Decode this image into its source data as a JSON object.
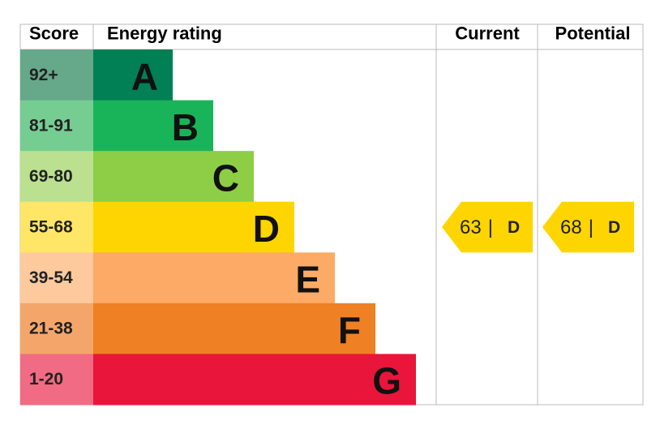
{
  "header": {
    "score": "Score",
    "rating": "Energy rating",
    "current": "Current",
    "potential": "Potential"
  },
  "bands": [
    {
      "score": "92+",
      "letter": "A",
      "color": "#008054",
      "score_color": "#66a88a"
    },
    {
      "score": "81-91",
      "letter": "B",
      "color": "#19b459",
      "score_color": "#75cd92"
    },
    {
      "score": "69-80",
      "letter": "C",
      "color": "#8dce46",
      "score_color": "#bbe08f"
    },
    {
      "score": "55-68",
      "letter": "D",
      "color": "#ffd500",
      "score_color": "#ffe666"
    },
    {
      "score": "39-54",
      "letter": "E",
      "color": "#fcaa65",
      "score_color": "#fdc99d"
    },
    {
      "score": "21-38",
      "letter": "F",
      "color": "#ef8023",
      "score_color": "#f4a66a"
    },
    {
      "score": "1-20",
      "letter": "G",
      "color": "#e9153b",
      "score_color": "#f06b83"
    }
  ],
  "current": {
    "value": 63,
    "separator": "|",
    "rating": "D"
  },
  "potential": {
    "value": 68,
    "separator": "|",
    "rating": "D"
  }
}
